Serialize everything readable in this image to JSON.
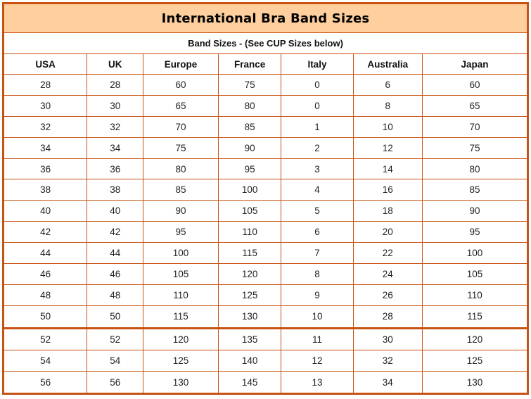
{
  "colors": {
    "border": "#C85211",
    "title_bg": "#FFCF9E",
    "text": "#1A1A1A"
  },
  "chart_data": {
    "type": "table",
    "title": "International Bra Band Sizes",
    "subtitle": "Band Sizes - (See CUP Sizes below)",
    "columns": [
      "USA",
      "UK",
      "Europe",
      "France",
      "Italy",
      "Australia",
      "Japan"
    ],
    "rows": [
      [
        "28",
        "28",
        "60",
        "75",
        "0",
        "6",
        "60"
      ],
      [
        "30",
        "30",
        "65",
        "80",
        "0",
        "8",
        "65"
      ],
      [
        "32",
        "32",
        "70",
        "85",
        "1",
        "10",
        "70"
      ],
      [
        "34",
        "34",
        "75",
        "90",
        "2",
        "12",
        "75"
      ],
      [
        "36",
        "36",
        "80",
        "95",
        "3",
        "14",
        "80"
      ],
      [
        "38",
        "38",
        "85",
        "100",
        "4",
        "16",
        "85"
      ],
      [
        "40",
        "40",
        "90",
        "105",
        "5",
        "18",
        "90"
      ],
      [
        "42",
        "42",
        "95",
        "110",
        "6",
        "20",
        "95"
      ],
      [
        "44",
        "44",
        "100",
        "115",
        "7",
        "22",
        "100"
      ],
      [
        "46",
        "46",
        "105",
        "120",
        "8",
        "24",
        "105"
      ],
      [
        "48",
        "48",
        "110",
        "125",
        "9",
        "26",
        "110"
      ],
      [
        "50",
        "50",
        "115",
        "130",
        "10",
        "28",
        "115"
      ],
      [
        "52",
        "52",
        "120",
        "135",
        "11",
        "30",
        "120"
      ],
      [
        "54",
        "54",
        "125",
        "140",
        "12",
        "32",
        "125"
      ],
      [
        "56",
        "56",
        "130",
        "145",
        "13",
        "34",
        "130"
      ]
    ]
  }
}
